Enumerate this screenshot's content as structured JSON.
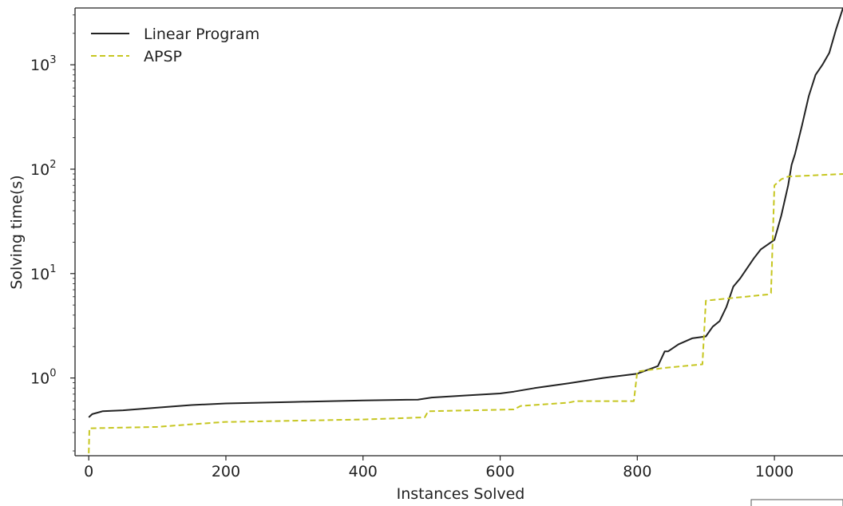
{
  "chart_data": {
    "type": "line",
    "title": "",
    "xlabel": "Instances Solved",
    "ylabel": "Solving time(s)",
    "xlim": [
      -20,
      1100
    ],
    "ylim": [
      0.18,
      3500
    ],
    "yscale": "log",
    "grid": false,
    "legend_position": "top-left",
    "x_ticks": [
      0,
      200,
      400,
      600,
      800,
      1000
    ],
    "x_tick_labels": [
      "0",
      "200",
      "400",
      "600",
      "800",
      "1000"
    ],
    "y_ticks": [
      1,
      10,
      100,
      1000
    ],
    "y_tick_labels": [
      {
        "base": "10",
        "exp": "0"
      },
      {
        "base": "10",
        "exp": "1"
      },
      {
        "base": "10",
        "exp": "2"
      },
      {
        "base": "10",
        "exp": "3"
      }
    ],
    "series": [
      {
        "name": "Linear Program",
        "color": "#222222",
        "dash": "solid",
        "x": [
          0,
          5,
          20,
          50,
          100,
          150,
          200,
          300,
          400,
          480,
          500,
          550,
          600,
          620,
          650,
          700,
          750,
          800,
          830,
          840,
          845,
          860,
          880,
          900,
          910,
          920,
          930,
          940,
          950,
          970,
          980,
          1000,
          1010,
          1020,
          1025,
          1030,
          1040,
          1050,
          1060,
          1070,
          1080,
          1090,
          1100
        ],
        "y": [
          0.42,
          0.45,
          0.48,
          0.49,
          0.52,
          0.55,
          0.57,
          0.59,
          0.61,
          0.62,
          0.65,
          0.68,
          0.71,
          0.74,
          0.8,
          0.89,
          1.0,
          1.1,
          1.3,
          1.8,
          1.8,
          2.1,
          2.4,
          2.5,
          3.1,
          3.5,
          4.8,
          7.5,
          9,
          14,
          17,
          21,
          36,
          70,
          110,
          140,
          260,
          500,
          800,
          1000,
          1300,
          2200,
          3500
        ]
      },
      {
        "name": "APSP",
        "color": "#c6c620",
        "dash": "dashed",
        "x": [
          0,
          1,
          2,
          100,
          150,
          200,
          210,
          300,
          400,
          490,
          495,
          620,
          630,
          700,
          710,
          795,
          800,
          840,
          895,
          900,
          990,
          995,
          1000,
          1010,
          1020,
          1100
        ],
        "y": [
          0.19,
          0.33,
          0.33,
          0.34,
          0.36,
          0.38,
          0.38,
          0.39,
          0.4,
          0.42,
          0.48,
          0.5,
          0.54,
          0.58,
          0.6,
          0.6,
          1.15,
          1.25,
          1.35,
          5.5,
          6.3,
          6.5,
          70,
          80,
          85,
          90
        ]
      }
    ]
  }
}
